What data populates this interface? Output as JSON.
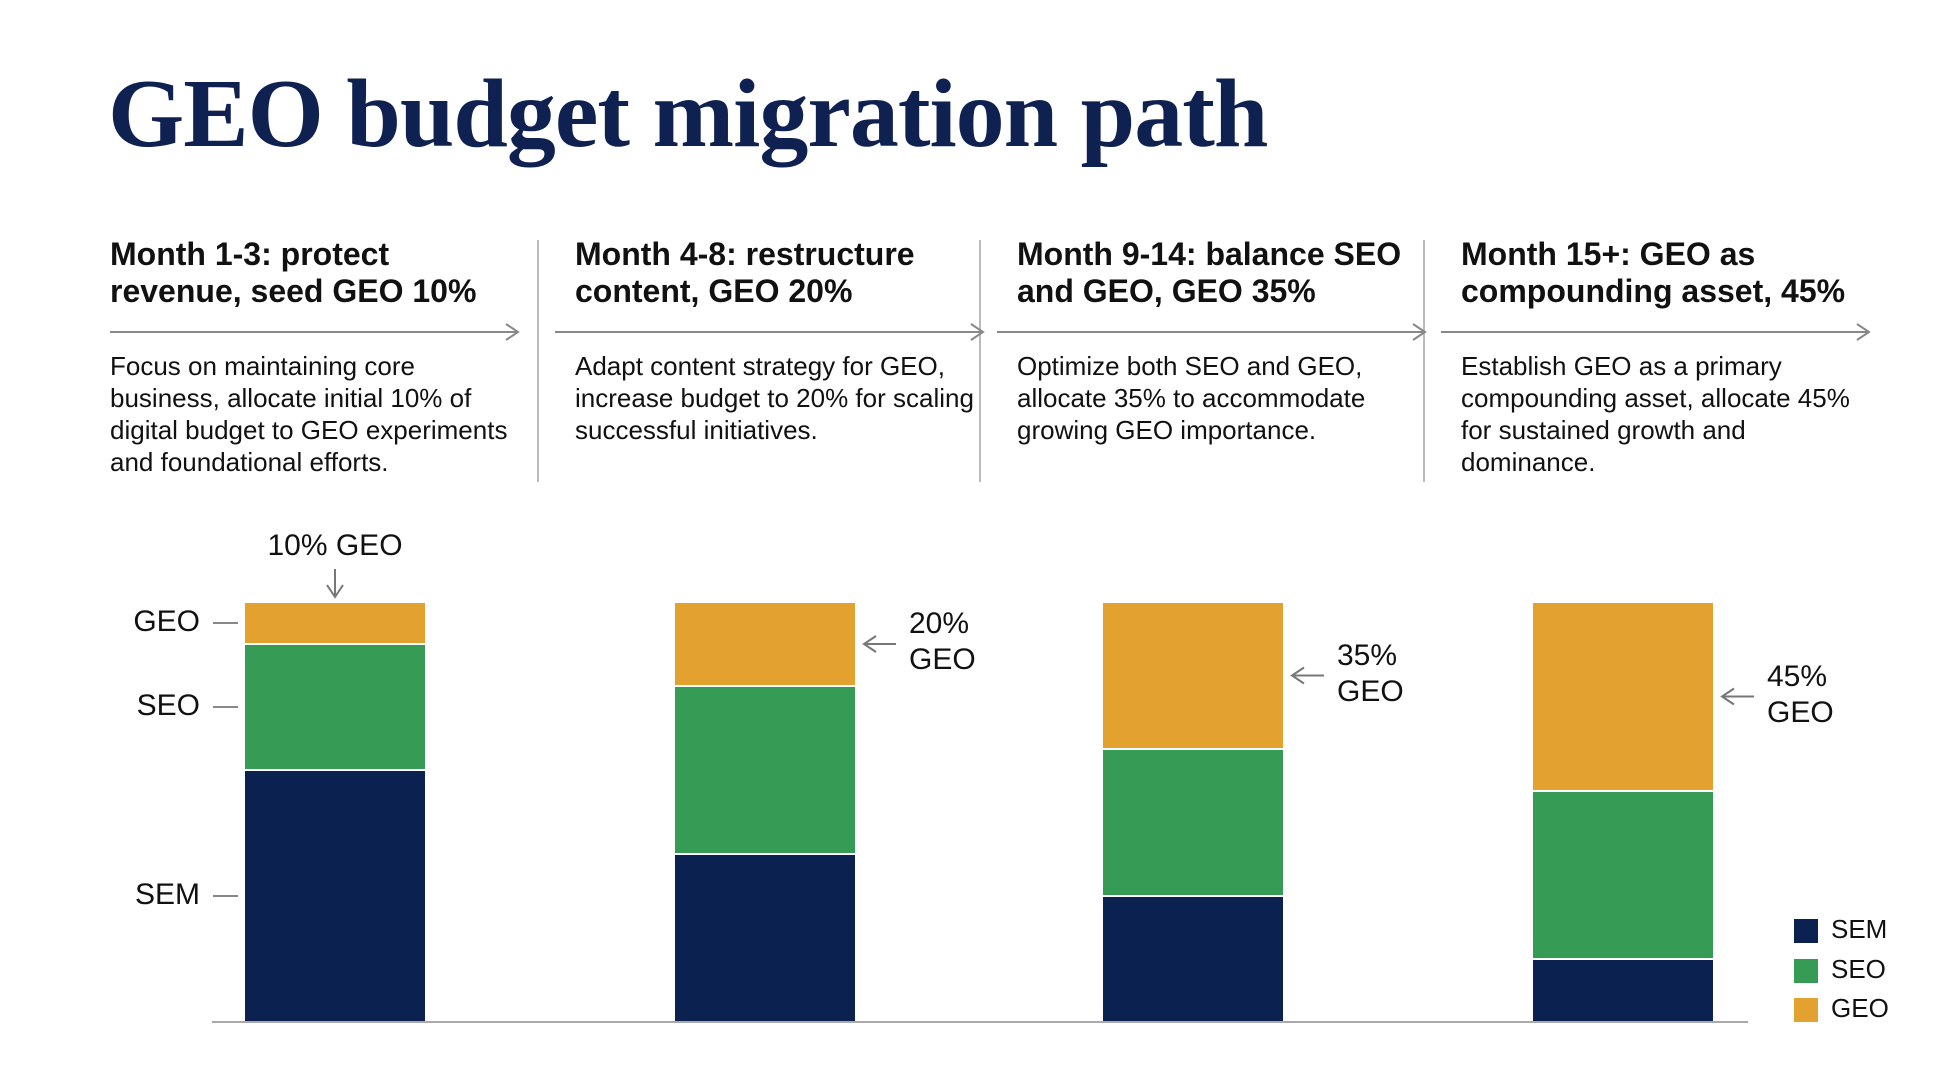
{
  "title": "GEO budget migration path",
  "phases": [
    {
      "heading": "Month 1-3: protect revenue, seed GEO 10%",
      "description": "Focus on maintaining core business, allocate initial 10% of digital budget to GEO experiments and foundational efforts."
    },
    {
      "heading": "Month 4-8: restructure content, GEO 20%",
      "description": "Adapt content strategy for GEO, increase budget to 20% for scaling successful initiatives."
    },
    {
      "heading": "Month 9-14: balance SEO and GEO, GEO 35%",
      "description": "Optimize both SEO and GEO, allocate 35% to accommodate growing GEO importance."
    },
    {
      "heading": "Month 15+: GEO as compounding asset, 45%",
      "description": "Establish GEO as a primary compounding asset, allocate 45% for sustained growth and dominance."
    }
  ],
  "chart_data": {
    "type": "stacked_bar",
    "categories": [
      null,
      null,
      null,
      null
    ],
    "ylim": [
      0,
      100
    ],
    "series": [
      {
        "name": "SEM",
        "color": "#0b2150",
        "values": [
          60,
          40,
          30,
          15
        ]
      },
      {
        "name": "SEO",
        "color": "#359b55",
        "values": [
          30,
          40,
          35,
          40
        ]
      },
      {
        "name": "GEO",
        "color": "#e3a22f",
        "values": [
          10,
          20,
          35,
          45
        ],
        "value_labels": [
          "10% GEO",
          "20% GEO",
          "35% GEO",
          "45% GEO"
        ]
      }
    ],
    "legend": "bottom-right"
  }
}
